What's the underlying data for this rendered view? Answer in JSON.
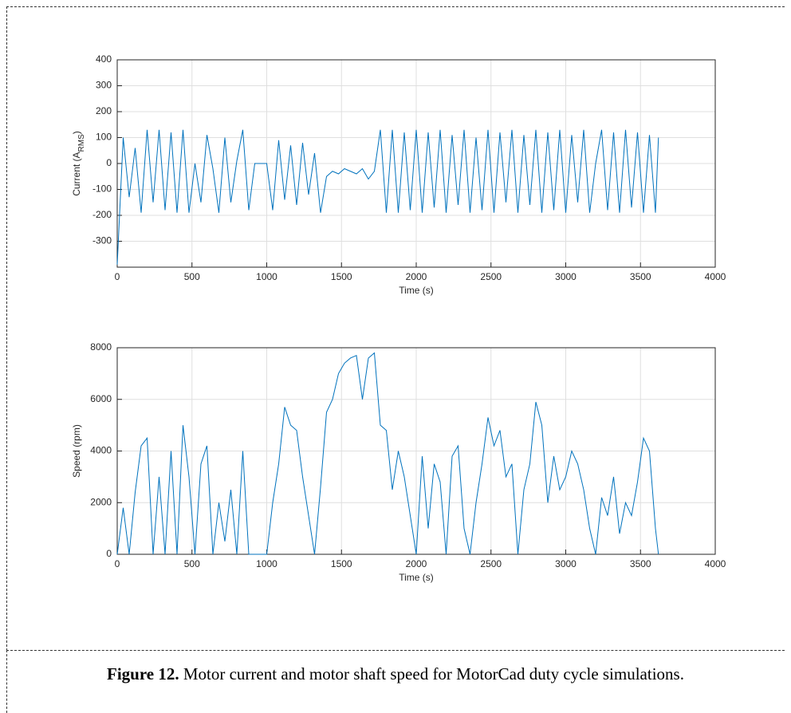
{
  "chart_data": [
    {
      "type": "line",
      "ylabel": [
        "Current (A",
        "RMS",
        ")"
      ],
      "xlabel": "Time (s)",
      "xlim": [
        0,
        4000
      ],
      "xticks": [
        0,
        500,
        1000,
        1500,
        2000,
        2500,
        3000,
        3500,
        4000
      ],
      "ylim": [
        -400,
        400
      ],
      "yticks": [
        -300,
        -200,
        -100,
        0,
        100,
        200,
        300,
        400
      ],
      "grid": true,
      "x": [
        0,
        40,
        80,
        120,
        160,
        200,
        240,
        280,
        320,
        360,
        400,
        440,
        480,
        520,
        560,
        600,
        640,
        680,
        720,
        760,
        800,
        840,
        880,
        920,
        960,
        1000,
        1040,
        1080,
        1120,
        1160,
        1200,
        1240,
        1280,
        1320,
        1360,
        1400,
        1440,
        1480,
        1520,
        1560,
        1600,
        1640,
        1680,
        1720,
        1760,
        1800,
        1840,
        1880,
        1920,
        1960,
        2000,
        2040,
        2080,
        2120,
        2160,
        2200,
        2240,
        2280,
        2320,
        2360,
        2400,
        2440,
        2480,
        2520,
        2560,
        2600,
        2640,
        2680,
        2720,
        2760,
        2800,
        2840,
        2880,
        2920,
        2960,
        3000,
        3040,
        3080,
        3120,
        3160,
        3200,
        3240,
        3280,
        3320,
        3360,
        3400,
        3440,
        3480,
        3520,
        3560,
        3600,
        3620
      ],
      "series": [
        {
          "color": "#0072bd",
          "values": [
            -390,
            100,
            -130,
            60,
            -190,
            130,
            -150,
            130,
            -180,
            120,
            -190,
            130,
            -190,
            0,
            -150,
            110,
            -20,
            -190,
            100,
            -150,
            10,
            130,
            -180,
            0,
            0,
            0,
            -180,
            90,
            -140,
            70,
            -160,
            80,
            -120,
            40,
            -190,
            -50,
            -30,
            -40,
            -20,
            -30,
            -40,
            -20,
            -60,
            -30,
            130,
            -190,
            130,
            -190,
            120,
            -180,
            130,
            -190,
            120,
            -170,
            130,
            -190,
            110,
            -160,
            130,
            -190,
            100,
            -180,
            130,
            -190,
            120,
            -150,
            130,
            -190,
            110,
            -160,
            130,
            -190,
            120,
            -180,
            130,
            -190,
            110,
            -150,
            130,
            -190,
            0,
            130,
            -180,
            120,
            -190,
            130,
            -170,
            120,
            -190,
            110,
            -190,
            100
          ]
        }
      ]
    },
    {
      "type": "line",
      "ylabel": [
        "Speed (rpm)"
      ],
      "xlabel": "Time (s)",
      "xlim": [
        0,
        4000
      ],
      "xticks": [
        0,
        500,
        1000,
        1500,
        2000,
        2500,
        3000,
        3500,
        4000
      ],
      "ylim": [
        0,
        8000
      ],
      "yticks": [
        0,
        2000,
        4000,
        6000,
        8000
      ],
      "grid": true,
      "x": [
        0,
        40,
        80,
        120,
        160,
        200,
        240,
        280,
        320,
        360,
        400,
        440,
        480,
        520,
        560,
        600,
        640,
        680,
        720,
        760,
        800,
        840,
        880,
        920,
        960,
        1000,
        1040,
        1080,
        1120,
        1160,
        1200,
        1240,
        1280,
        1320,
        1360,
        1400,
        1440,
        1480,
        1520,
        1560,
        1600,
        1640,
        1680,
        1720,
        1760,
        1800,
        1840,
        1880,
        1920,
        1960,
        2000,
        2040,
        2080,
        2120,
        2160,
        2200,
        2240,
        2280,
        2320,
        2360,
        2400,
        2440,
        2480,
        2520,
        2560,
        2600,
        2640,
        2680,
        2720,
        2760,
        2800,
        2840,
        2880,
        2920,
        2960,
        3000,
        3040,
        3080,
        3120,
        3160,
        3200,
        3240,
        3280,
        3320,
        3360,
        3400,
        3440,
        3480,
        3520,
        3560,
        3600,
        3620
      ],
      "series": [
        {
          "color": "#0072bd",
          "values": [
            0,
            1800,
            0,
            2400,
            4200,
            4500,
            0,
            3000,
            0,
            4000,
            0,
            5000,
            3000,
            0,
            3500,
            4200,
            0,
            2000,
            500,
            2500,
            0,
            4000,
            0,
            0,
            0,
            0,
            2000,
            3500,
            5700,
            5000,
            4800,
            3000,
            1500,
            0,
            2600,
            5500,
            6000,
            7000,
            7400,
            7600,
            7700,
            6000,
            7600,
            7800,
            5000,
            4800,
            2500,
            4000,
            3000,
            1500,
            0,
            3800,
            1000,
            3500,
            2800,
            0,
            3800,
            4200,
            1000,
            0,
            2000,
            3500,
            5300,
            4200,
            4800,
            3000,
            3500,
            0,
            2500,
            3500,
            5900,
            5000,
            2000,
            3800,
            2500,
            3000,
            4000,
            3500,
            2500,
            1000,
            0,
            2200,
            1500,
            3000,
            800,
            2000,
            1500,
            2800,
            4500,
            4000,
            1000,
            0
          ]
        }
      ]
    }
  ],
  "caption": {
    "label": "Figure 12.",
    "text": " Motor current and motor shaft speed for MotorCad duty cycle simulations."
  }
}
